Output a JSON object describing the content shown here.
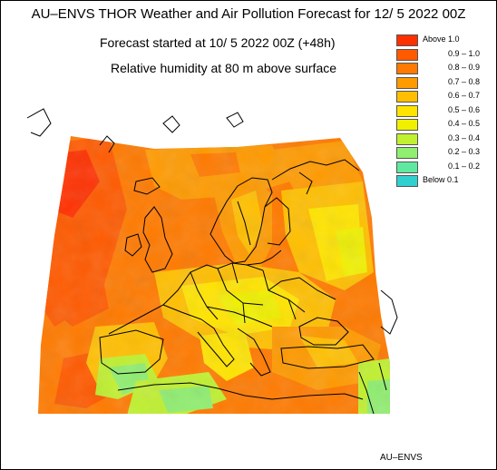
{
  "header": {
    "title": "AU–ENVS THOR Weather and Air Pollution Forecast for 12/ 5 2022  00Z",
    "started": "Forecast started at 10/ 5 2022  00Z (+48h)",
    "variable": "Relative humidity at 80 m above surface"
  },
  "legend": [
    {
      "label": "Above   1.0",
      "color": "#ff3000"
    },
    {
      "label": "0.9 – 1.0",
      "color": "#ff5a00"
    },
    {
      "label": "0.8 – 0.9",
      "color": "#ff7a00"
    },
    {
      "label": "0.7 – 0.8",
      "color": "#ff9a00"
    },
    {
      "label": "0.6 – 0.7",
      "color": "#ffbf00"
    },
    {
      "label": "0.5 – 0.6",
      "color": "#ffe400"
    },
    {
      "label": "0.4 – 0.5",
      "color": "#f0f000"
    },
    {
      "label": "0.3 – 0.4",
      "color": "#c0f030"
    },
    {
      "label": "0.2 – 0.3",
      "color": "#90ee70"
    },
    {
      "label": "0.1 – 0.2",
      "color": "#60e8a0"
    },
    {
      "label": "Below   0.1",
      "color": "#30d0d0"
    }
  ],
  "credit": "AU–ENVS"
}
